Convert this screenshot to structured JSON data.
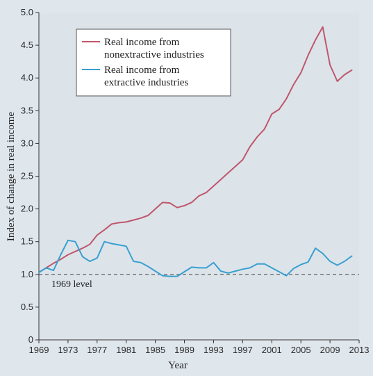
{
  "chart_data": {
    "type": "line",
    "xlabel": "Year",
    "ylabel": "Index of change in real income",
    "xlim": [
      1969,
      2013
    ],
    "ylim": [
      0,
      5
    ],
    "x_ticks": [
      1969,
      1973,
      1977,
      1981,
      1985,
      1989,
      1993,
      1997,
      2001,
      2005,
      2009,
      2013
    ],
    "y_ticks": [
      "0",
      "0.5",
      "1.0",
      "1.5",
      "2.0",
      "2.5",
      "3.0",
      "3.5",
      "4.0",
      "4.5",
      "5.0"
    ],
    "grid": false,
    "legend_position": "top-left",
    "reference_line": {
      "y": 1.0,
      "label": "1969 level",
      "style": "dashed"
    },
    "series": [
      {
        "name": "Real income from nonextractive industries",
        "color": "#c0566b",
        "points": [
          [
            1969,
            1.03
          ],
          [
            1970,
            1.1
          ],
          [
            1971,
            1.17
          ],
          [
            1972,
            1.23
          ],
          [
            1973,
            1.3
          ],
          [
            1974,
            1.35
          ],
          [
            1975,
            1.4
          ],
          [
            1976,
            1.46
          ],
          [
            1977,
            1.6
          ],
          [
            1978,
            1.68
          ],
          [
            1979,
            1.77
          ],
          [
            1980,
            1.79
          ],
          [
            1981,
            1.8
          ],
          [
            1982,
            1.83
          ],
          [
            1983,
            1.86
          ],
          [
            1984,
            1.9
          ],
          [
            1985,
            2.0
          ],
          [
            1986,
            2.1
          ],
          [
            1987,
            2.09
          ],
          [
            1988,
            2.02
          ],
          [
            1989,
            2.05
          ],
          [
            1990,
            2.1
          ],
          [
            1991,
            2.2
          ],
          [
            1992,
            2.25
          ],
          [
            1993,
            2.35
          ],
          [
            1994,
            2.45
          ],
          [
            1995,
            2.55
          ],
          [
            1996,
            2.65
          ],
          [
            1997,
            2.75
          ],
          [
            1998,
            2.95
          ],
          [
            1999,
            3.1
          ],
          [
            2000,
            3.22
          ],
          [
            2001,
            3.45
          ],
          [
            2002,
            3.52
          ],
          [
            2003,
            3.68
          ],
          [
            2004,
            3.9
          ],
          [
            2005,
            4.08
          ],
          [
            2006,
            4.35
          ],
          [
            2007,
            4.58
          ],
          [
            2008,
            4.78
          ],
          [
            2009,
            4.2
          ],
          [
            2010,
            3.95
          ],
          [
            2011,
            4.05
          ],
          [
            2012,
            4.12
          ]
        ]
      },
      {
        "name": "Real income from extractive industries",
        "color": "#3a9fd0",
        "points": [
          [
            1969,
            1.03
          ],
          [
            1970,
            1.1
          ],
          [
            1971,
            1.06
          ],
          [
            1972,
            1.3
          ],
          [
            1973,
            1.52
          ],
          [
            1974,
            1.5
          ],
          [
            1975,
            1.27
          ],
          [
            1976,
            1.2
          ],
          [
            1977,
            1.25
          ],
          [
            1978,
            1.5
          ],
          [
            1979,
            1.47
          ],
          [
            1980,
            1.45
          ],
          [
            1981,
            1.43
          ],
          [
            1982,
            1.2
          ],
          [
            1983,
            1.18
          ],
          [
            1984,
            1.12
          ],
          [
            1985,
            1.05
          ],
          [
            1986,
            0.98
          ],
          [
            1987,
            0.97
          ],
          [
            1988,
            0.97
          ],
          [
            1989,
            1.04
          ],
          [
            1990,
            1.11
          ],
          [
            1991,
            1.1
          ],
          [
            1992,
            1.1
          ],
          [
            1993,
            1.18
          ],
          [
            1994,
            1.05
          ],
          [
            1995,
            1.02
          ],
          [
            1996,
            1.05
          ],
          [
            1997,
            1.08
          ],
          [
            1998,
            1.1
          ],
          [
            1999,
            1.16
          ],
          [
            2000,
            1.16
          ],
          [
            2001,
            1.1
          ],
          [
            2002,
            1.04
          ],
          [
            2003,
            0.98
          ],
          [
            2004,
            1.09
          ],
          [
            2005,
            1.15
          ],
          [
            2006,
            1.19
          ],
          [
            2007,
            1.4
          ],
          [
            2008,
            1.32
          ],
          [
            2009,
            1.2
          ],
          [
            2010,
            1.14
          ],
          [
            2011,
            1.2
          ],
          [
            2012,
            1.28
          ]
        ]
      }
    ]
  },
  "legend": {
    "items": [
      {
        "line1": "Real income from",
        "line2": "nonextractive industries",
        "color": "#c0566b"
      },
      {
        "line1": "Real income from",
        "line2": "extractive industries",
        "color": "#3a9fd0"
      }
    ]
  }
}
